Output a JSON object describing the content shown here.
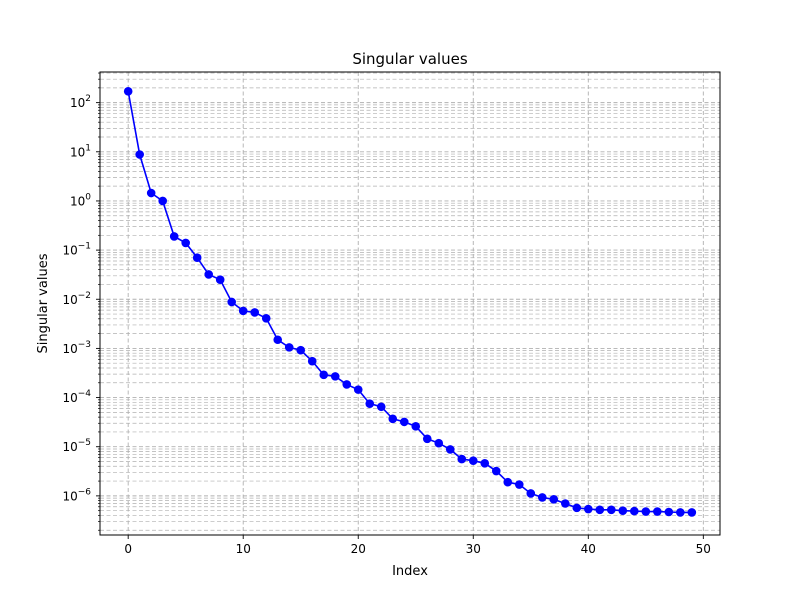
{
  "chart_data": {
    "type": "line",
    "title": "Singular values",
    "xlabel": "Index",
    "ylabel": "Singular values",
    "yscale": "log",
    "xlim": [
      -2.45,
      51.45
    ],
    "ylim": [
      1.6e-07,
      420
    ],
    "x_ticks": [
      0,
      10,
      20,
      30,
      40,
      50
    ],
    "y_ticks": [
      {
        "value": 1e-06,
        "base": "10",
        "exp": "−6"
      },
      {
        "value": 1e-05,
        "base": "10",
        "exp": "−5"
      },
      {
        "value": 0.0001,
        "base": "10",
        "exp": "−4"
      },
      {
        "value": 0.001,
        "base": "10",
        "exp": "−3"
      },
      {
        "value": 0.01,
        "base": "10",
        "exp": "−2"
      },
      {
        "value": 0.1,
        "base": "10",
        "exp": "−1"
      },
      {
        "value": 1,
        "base": "10",
        "exp": "0"
      },
      {
        "value": 10,
        "base": "10",
        "exp": "1"
      },
      {
        "value": 100,
        "base": "10",
        "exp": "2"
      }
    ],
    "grid": "both-major-minor-dashed",
    "line_color": "#0000ff",
    "marker": "circle",
    "x": [
      0,
      1,
      2,
      3,
      4,
      5,
      6,
      7,
      8,
      9,
      10,
      11,
      12,
      13,
      14,
      15,
      16,
      17,
      18,
      19,
      20,
      21,
      22,
      23,
      24,
      25,
      26,
      27,
      28,
      29,
      30,
      31,
      32,
      33,
      34,
      35,
      36,
      37,
      38,
      39,
      40,
      41,
      42,
      43,
      44,
      45,
      46,
      47,
      48,
      49
    ],
    "values": [
      170,
      8.8,
      1.45,
      1.0,
      0.19,
      0.14,
      0.07,
      0.032,
      0.025,
      0.0088,
      0.0058,
      0.0054,
      0.0041,
      0.0015,
      0.00105,
      0.00092,
      0.00055,
      0.00029,
      0.00027,
      0.000185,
      0.000145,
      7.5e-05,
      6.5e-05,
      3.7e-05,
      3.2e-05,
      2.6e-05,
      1.45e-05,
      1.18e-05,
      8.8e-06,
      5.6e-06,
      5.2e-06,
      4.6e-06,
      3.2e-06,
      1.9e-06,
      1.7e-06,
      1.12e-06,
      9.3e-07,
      8.5e-07,
      7e-07,
      5.7e-07,
      5.4e-07,
      5.2e-07,
      5.2e-07,
      5e-07,
      4.9e-07,
      4.8e-07,
      4.8e-07,
      4.7e-07,
      4.6e-07,
      4.6e-07
    ]
  }
}
